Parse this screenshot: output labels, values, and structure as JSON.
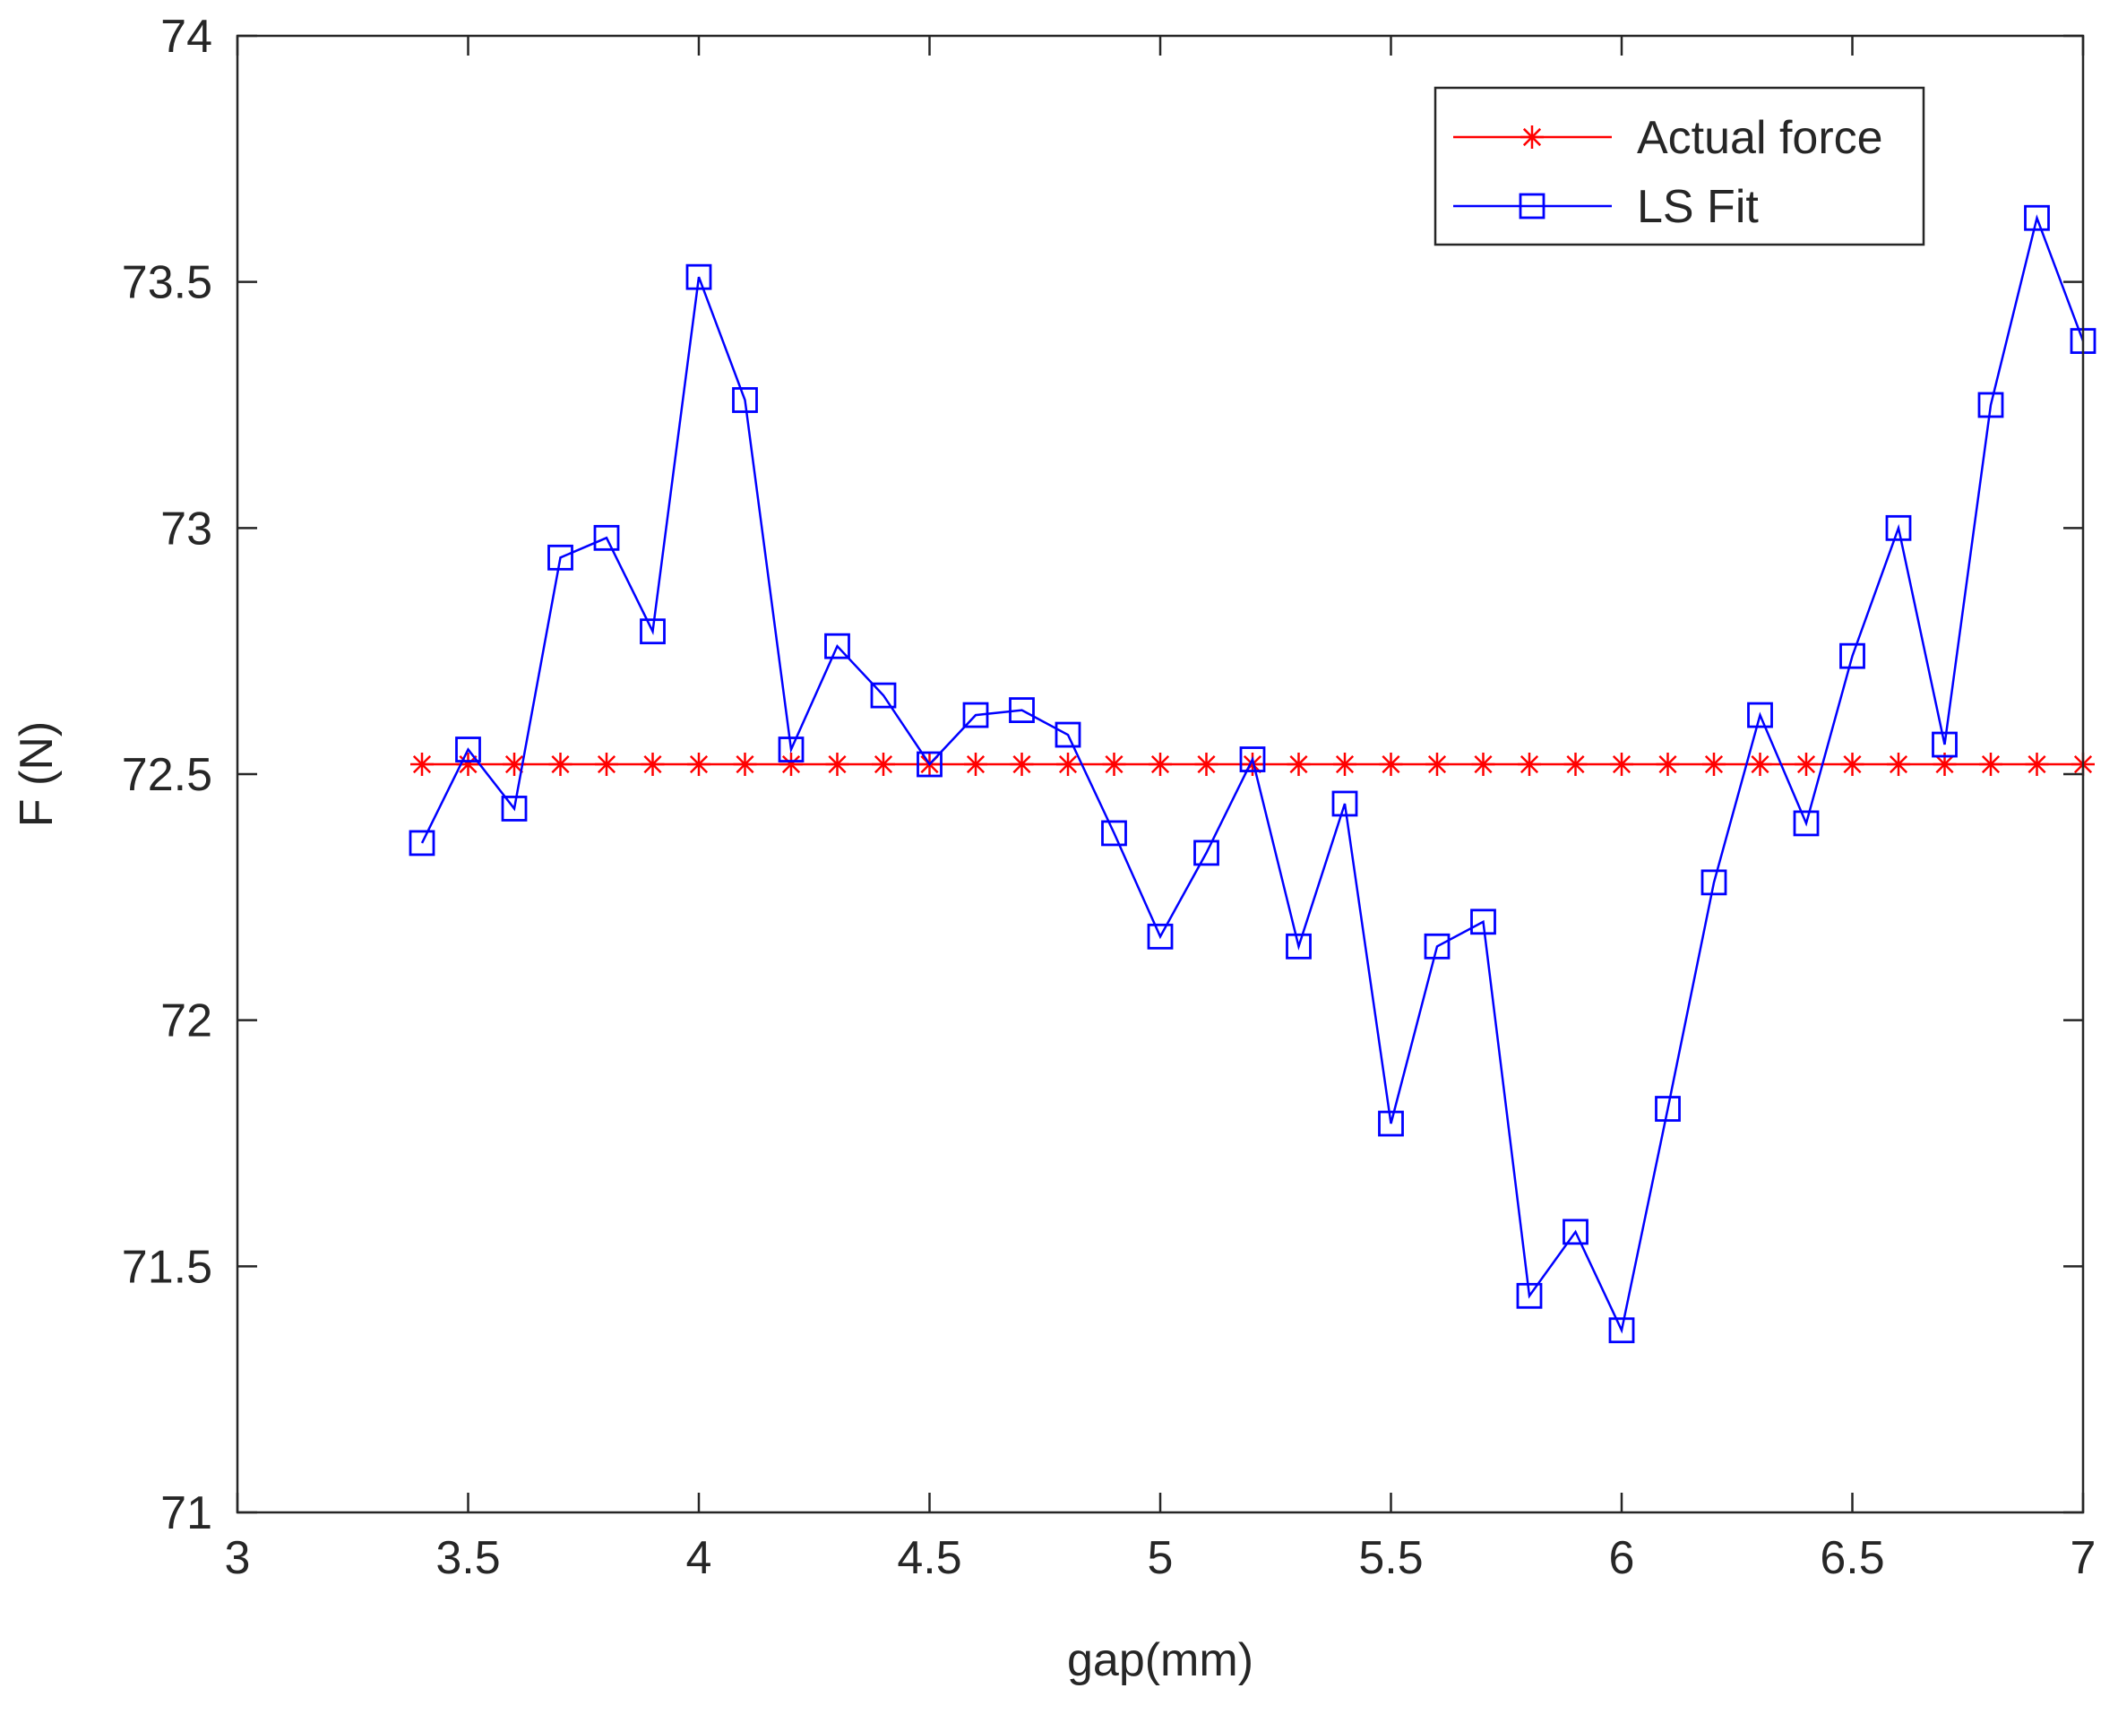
{
  "chart_data": {
    "type": "line",
    "title": "",
    "xlabel": "gap(mm)",
    "ylabel": "F (N)",
    "xlim": [
      3,
      7
    ],
    "ylim": [
      71,
      74
    ],
    "xticks": [
      3,
      3.5,
      4,
      4.5,
      5,
      5.5,
      6,
      6.5,
      7
    ],
    "xtick_labels": [
      "3",
      "3.5",
      "4",
      "4.5",
      "5",
      "5.5",
      "6",
      "6.5",
      "7"
    ],
    "yticks": [
      71,
      71.5,
      72,
      72.5,
      73,
      73.5,
      74
    ],
    "ytick_labels": [
      "71",
      "71.5",
      "72",
      "72.5",
      "73",
      "73.5",
      "74"
    ],
    "grid": false,
    "legend_position": "top-right",
    "x": [
      3.4,
      3.5,
      3.6,
      3.7,
      3.8,
      3.9,
      4.0,
      4.1,
      4.2,
      4.3,
      4.4,
      4.5,
      4.6,
      4.7,
      4.8,
      4.9,
      5.0,
      5.1,
      5.2,
      5.3,
      5.4,
      5.5,
      5.6,
      5.7,
      5.8,
      5.9,
      6.0,
      6.1,
      6.2,
      6.3,
      6.4,
      6.5,
      6.6,
      6.7,
      6.8,
      6.9,
      7.0
    ],
    "series": [
      {
        "name": "Actual force",
        "color": "#ff0000",
        "marker": "asterisk",
        "values": [
          72.52,
          72.52,
          72.52,
          72.52,
          72.52,
          72.52,
          72.52,
          72.52,
          72.52,
          72.52,
          72.52,
          72.52,
          72.52,
          72.52,
          72.52,
          72.52,
          72.52,
          72.52,
          72.52,
          72.52,
          72.52,
          72.52,
          72.52,
          72.52,
          72.52,
          72.52,
          72.52,
          72.52,
          72.52,
          72.52,
          72.52,
          72.52,
          72.52,
          72.52,
          72.52,
          72.52,
          72.52
        ]
      },
      {
        "name": "LS Fit",
        "color": "#0000ff",
        "marker": "square",
        "values": [
          72.36,
          72.55,
          72.43,
          72.94,
          72.98,
          72.79,
          73.51,
          73.26,
          72.55,
          72.76,
          72.66,
          72.52,
          72.62,
          72.63,
          72.58,
          72.38,
          72.17,
          72.34,
          72.53,
          72.15,
          72.44,
          71.79,
          72.15,
          72.2,
          71.44,
          71.57,
          71.37,
          71.82,
          72.28,
          72.62,
          72.4,
          72.74,
          73.0,
          72.56,
          73.25,
          73.63,
          73.38
        ]
      }
    ]
  }
}
